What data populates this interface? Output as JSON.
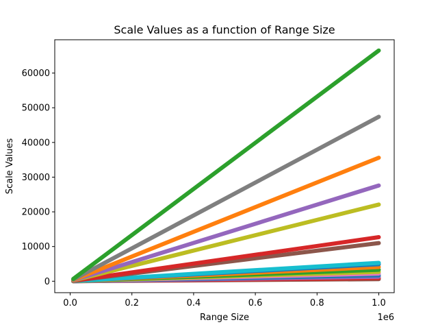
{
  "chart_data": {
    "type": "scatter",
    "title": "Scale Values as a function of Range Size",
    "xlabel": "Range Size",
    "ylabel": "Scale Values",
    "x_offset_label": "1e6",
    "xlim": [
      -50000,
      1050000
    ],
    "ylim": [
      -3300,
      69600
    ],
    "x_ticks": [
      0,
      200000,
      400000,
      600000,
      800000,
      1000000
    ],
    "x_tick_labels": [
      "0.0",
      "0.2",
      "0.4",
      "0.6",
      "0.8",
      "1.0"
    ],
    "y_ticks": [
      0,
      10000,
      20000,
      30000,
      40000,
      50000,
      60000
    ],
    "y_tick_labels": [
      "0",
      "10000",
      "20000",
      "30000",
      "40000",
      "50000",
      "60000"
    ],
    "grid": false,
    "x_range": [
      10000,
      1000000
    ],
    "series": [
      {
        "color": "#2ca02c",
        "slope": 0.0665
      },
      {
        "color": "#7f7f7f",
        "slope": 0.0474
      },
      {
        "color": "#ff7f0e",
        "slope": 0.0356
      },
      {
        "color": "#9467bd",
        "slope": 0.0276
      },
      {
        "color": "#bcbd22",
        "slope": 0.0221
      },
      {
        "color": "#d62728",
        "slope": 0.0127
      },
      {
        "color": "#8c564b",
        "slope": 0.011
      },
      {
        "color": "#17becf",
        "slope": 0.0053
      },
      {
        "color": "#1f77b4",
        "slope": 0.0049
      },
      {
        "color": "#ff7f0e",
        "slope": 0.0041
      },
      {
        "color": "#2ca02c",
        "slope": 0.0033
      },
      {
        "color": "#bcbd22",
        "slope": 0.0027
      },
      {
        "color": "#e377c2",
        "slope": 0.0022
      },
      {
        "color": "#1f77b4",
        "slope": 0.0017
      },
      {
        "color": "#9467bd",
        "slope": 0.0013
      },
      {
        "color": "#d62728",
        "slope": 0.0009
      },
      {
        "color": "#8c564b",
        "slope": 0.0006
      }
    ]
  }
}
